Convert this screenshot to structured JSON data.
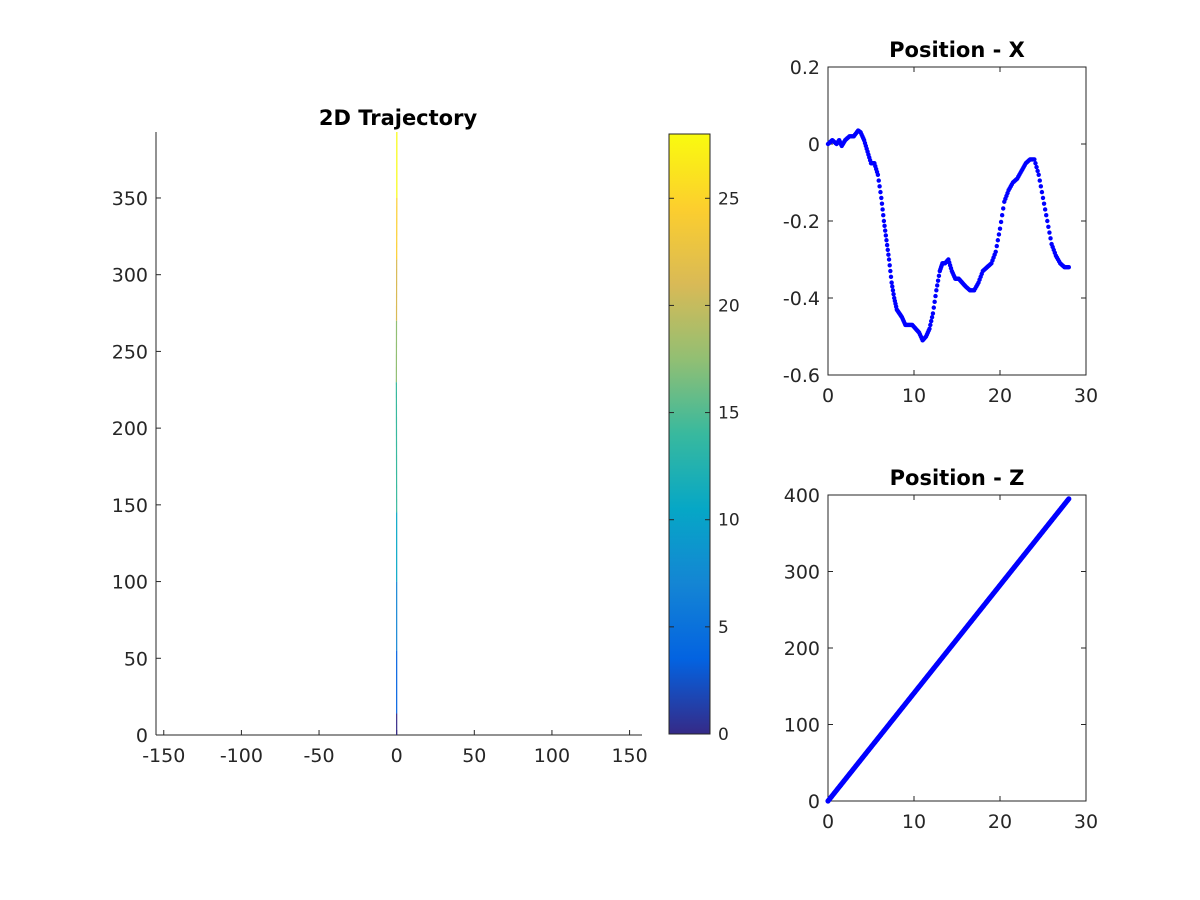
{
  "chart_data": [
    {
      "type": "line",
      "title": "2D Trajectory",
      "xlabel": "",
      "ylabel": "",
      "xlim": [
        -155,
        158
      ],
      "ylim": [
        0,
        393
      ],
      "xticks": [
        -150,
        -100,
        -50,
        0,
        50,
        100,
        150
      ],
      "yticks": [
        0,
        50,
        100,
        150,
        200,
        250,
        300,
        350
      ],
      "xtick_labels": [
        "-150",
        "-100",
        "-50",
        "0",
        "50",
        "100",
        "150"
      ],
      "ytick_labels": [
        "0",
        "50",
        "100",
        "150",
        "200",
        "250",
        "300",
        "350"
      ],
      "box": false,
      "colormap": "parula",
      "line_color_by": "time",
      "points": {
        "x": [
          0,
          0,
          0,
          0,
          0,
          -0.1,
          -0.2,
          -0.1,
          0,
          0.1,
          0.1
        ],
        "y": [
          0,
          14,
          55,
          100,
          145,
          190,
          230,
          270,
          310,
          350,
          393
        ]
      },
      "colorbar": {
        "range": [
          0,
          28
        ],
        "ticks": [
          0,
          5,
          10,
          15,
          20,
          25
        ],
        "tick_labels": [
          "0",
          "5",
          "10",
          "15",
          "20",
          "25"
        ],
        "colors": [
          "#352a87",
          "#0363e1",
          "#1485d4",
          "#06a7c6",
          "#38b99e",
          "#92bf73",
          "#d9ba56",
          "#fcce2e",
          "#f9fb0e"
        ]
      }
    },
    {
      "type": "scatter",
      "title": "Position - X",
      "xlabel": "",
      "ylabel": "",
      "xlim": [
        0,
        30
      ],
      "ylim": [
        -0.6,
        0.2
      ],
      "xticks": [
        0,
        10,
        20,
        30
      ],
      "yticks": [
        0.2,
        0,
        -0.2,
        -0.4,
        -0.6
      ],
      "xtick_labels": [
        "0",
        "10",
        "20",
        "30"
      ],
      "ytick_labels": [
        "0.2",
        "0",
        "-0.2",
        "-0.4",
        "-0.6"
      ],
      "box": true,
      "marker_color": "#0000ff",
      "series": [
        {
          "x": [
            0,
            0.5,
            1,
            1.3,
            1.6,
            2,
            2.5,
            3,
            3.5,
            3.8,
            4.2,
            4.6,
            5,
            5.4,
            5.8,
            6.2,
            6.5,
            6.8,
            7.1,
            7.4,
            7.7,
            8,
            8.3,
            8.6,
            9,
            9.4,
            9.8,
            10.2,
            10.6,
            11,
            11.4,
            11.8,
            12.2,
            12.6,
            13,
            13.3,
            13.6,
            14,
            14.4,
            14.8,
            15.2,
            15.6,
            16,
            16.5,
            17,
            17.5,
            18,
            18.5,
            19,
            19.5,
            20,
            20.5,
            21,
            21.5,
            22,
            22.5,
            23,
            23.5,
            24,
            24.5,
            25,
            25.5,
            26,
            26.5,
            27,
            27.5,
            28
          ],
          "y": [
            0,
            0.01,
            0,
            0.01,
            -0.005,
            0.01,
            0.02,
            0.02,
            0.035,
            0.03,
            0.01,
            -0.02,
            -0.05,
            -0.05,
            -0.08,
            -0.14,
            -0.2,
            -0.25,
            -0.3,
            -0.36,
            -0.4,
            -0.43,
            -0.44,
            -0.45,
            -0.47,
            -0.47,
            -0.47,
            -0.48,
            -0.49,
            -0.51,
            -0.5,
            -0.48,
            -0.44,
            -0.38,
            -0.33,
            -0.31,
            -0.31,
            -0.3,
            -0.33,
            -0.35,
            -0.35,
            -0.36,
            -0.37,
            -0.38,
            -0.38,
            -0.36,
            -0.33,
            -0.32,
            -0.31,
            -0.28,
            -0.22,
            -0.15,
            -0.12,
            -0.1,
            -0.09,
            -0.07,
            -0.05,
            -0.04,
            -0.04,
            -0.08,
            -0.14,
            -0.2,
            -0.26,
            -0.29,
            -0.31,
            -0.32,
            -0.32
          ]
        }
      ]
    },
    {
      "type": "scatter",
      "title": "Position - Z",
      "xlabel": "",
      "ylabel": "",
      "xlim": [
        0,
        30
      ],
      "ylim": [
        0,
        400
      ],
      "xticks": [
        0,
        10,
        20,
        30
      ],
      "yticks": [
        0,
        100,
        200,
        300,
        400
      ],
      "xtick_labels": [
        "0",
        "10",
        "20",
        "30"
      ],
      "ytick_labels": [
        "0",
        "100",
        "200",
        "300",
        "400"
      ],
      "box": true,
      "marker_color": "#0000ff",
      "series": [
        {
          "x": [
            0,
            28
          ],
          "y": [
            0,
            395
          ]
        }
      ]
    }
  ]
}
